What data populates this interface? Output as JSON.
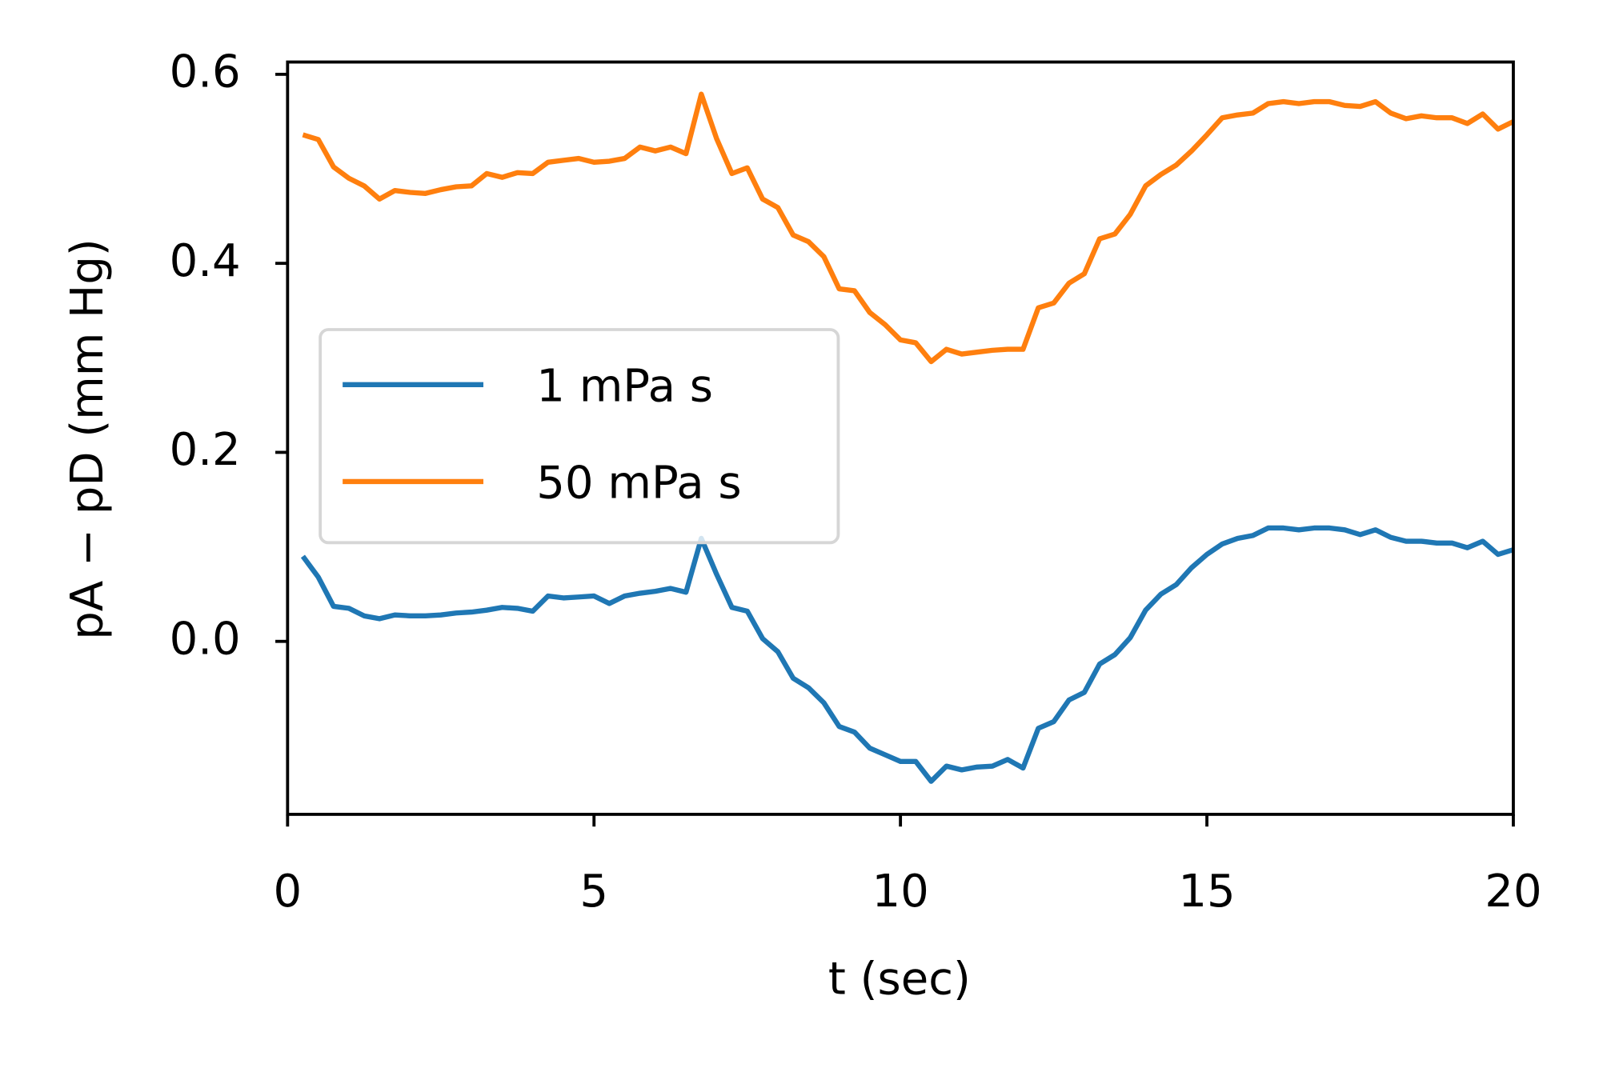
{
  "chart_data": {
    "type": "line",
    "xlabel": "t (sec)",
    "ylabel": "pA − pD (mm Hg)",
    "x": [
      0.25,
      0.5,
      0.75,
      1,
      1.25,
      1.5,
      1.75,
      2,
      2.25,
      2.5,
      2.75,
      3,
      3.25,
      3.5,
      3.75,
      4,
      4.25,
      4.5,
      4.75,
      5,
      5.25,
      5.5,
      5.75,
      6,
      6.25,
      6.5,
      6.75,
      7,
      7.25,
      7.5,
      7.75,
      8,
      8.25,
      8.5,
      8.75,
      9,
      9.25,
      9.5,
      9.75,
      10,
      10.25,
      10.5,
      10.75,
      11,
      11.25,
      11.5,
      11.75,
      12,
      12.25,
      12.5,
      12.75,
      13,
      13.25,
      13.5,
      13.75,
      14,
      14.25,
      14.5,
      14.75,
      15,
      15.25,
      15.5,
      15.75,
      16,
      16.25,
      16.5,
      16.75,
      17,
      17.25,
      17.5,
      17.75,
      18,
      18.25,
      18.5,
      18.75,
      19,
      19.25,
      19.5,
      19.75,
      20
    ],
    "series": [
      {
        "name": "1 mPa s",
        "color": "#1f77b4",
        "values": [
          0.09,
          0.068,
          0.037,
          0.035,
          0.027,
          0.024,
          0.028,
          0.027,
          0.027,
          0.028,
          0.03,
          0.031,
          0.033,
          0.036,
          0.035,
          0.032,
          0.048,
          0.046,
          0.047,
          0.048,
          0.04,
          0.048,
          0.051,
          0.053,
          0.056,
          0.052,
          0.109,
          0.071,
          0.036,
          0.032,
          0.003,
          -0.011,
          -0.039,
          -0.049,
          -0.065,
          -0.09,
          -0.096,
          -0.113,
          -0.12,
          -0.127,
          -0.127,
          -0.148,
          -0.132,
          -0.136,
          -0.133,
          -0.132,
          -0.125,
          -0.134,
          -0.092,
          -0.085,
          -0.062,
          -0.054,
          -0.024,
          -0.014,
          0.004,
          0.033,
          0.05,
          0.06,
          0.078,
          0.092,
          0.103,
          0.109,
          0.112,
          0.12,
          0.12,
          0.118,
          0.12,
          0.12,
          0.118,
          0.113,
          0.118,
          0.11,
          0.106,
          0.106,
          0.104,
          0.104,
          0.099,
          0.106,
          0.092,
          0.097
        ]
      },
      {
        "name": "50 mPa s",
        "color": "#ff7f0e",
        "values": [
          0.536,
          0.531,
          0.502,
          0.49,
          0.482,
          0.468,
          0.477,
          0.475,
          0.474,
          0.478,
          0.481,
          0.482,
          0.495,
          0.491,
          0.496,
          0.495,
          0.507,
          0.509,
          0.511,
          0.507,
          0.508,
          0.511,
          0.523,
          0.519,
          0.523,
          0.516,
          0.579,
          0.532,
          0.495,
          0.501,
          0.468,
          0.459,
          0.43,
          0.423,
          0.407,
          0.373,
          0.371,
          0.348,
          0.335,
          0.319,
          0.316,
          0.296,
          0.309,
          0.304,
          0.306,
          0.308,
          0.309,
          0.309,
          0.353,
          0.358,
          0.379,
          0.389,
          0.426,
          0.431,
          0.452,
          0.482,
          0.494,
          0.504,
          0.519,
          0.536,
          0.554,
          0.557,
          0.559,
          0.569,
          0.571,
          0.569,
          0.571,
          0.571,
          0.567,
          0.566,
          0.571,
          0.559,
          0.553,
          0.556,
          0.554,
          0.554,
          0.548,
          0.558,
          0.542,
          0.55
        ]
      }
    ],
    "xlim": [
      0,
      20
    ],
    "xticks": [
      0,
      5,
      10,
      15,
      20
    ],
    "ylim": [
      -0.183,
      0.613
    ],
    "yticks": [
      {
        "value": 0,
        "label": "0.0"
      },
      0.2,
      0.4,
      0.6
    ],
    "grid": false,
    "legend": "center left"
  }
}
